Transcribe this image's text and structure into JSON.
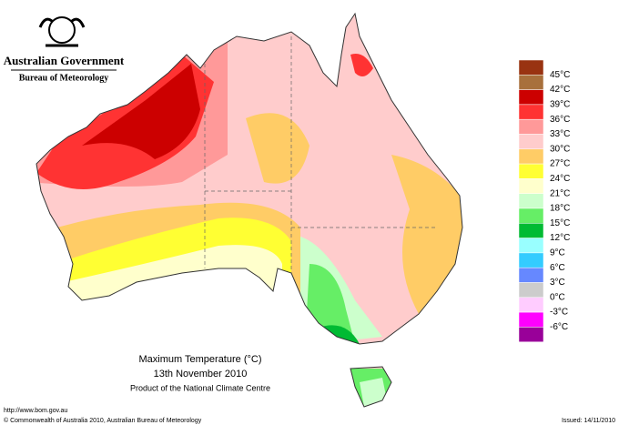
{
  "header": {
    "government": "Australian Government",
    "agency": "Bureau of Meteorology"
  },
  "map": {
    "title": "Maximum Temperature (°C)",
    "date": "13th November 2010",
    "product": "Product of the National Climate Centre"
  },
  "legend": {
    "colors": [
      "#993311",
      "#a8703c",
      "#cc0000",
      "#ff3333",
      "#ff9999",
      "#ffcccc",
      "#ffcc66",
      "#ffff33",
      "#ffffcc",
      "#ccffcc",
      "#66ee66",
      "#00bb33",
      "#99ffff",
      "#33ccff",
      "#6688ff",
      "#cccccc",
      "#ffccff",
      "#ff00ff",
      "#990099"
    ],
    "labels": [
      "45°C",
      "42°C",
      "39°C",
      "36°C",
      "33°C",
      "30°C",
      "27°C",
      "24°C",
      "21°C",
      "18°C",
      "15°C",
      "12°C",
      "9°C",
      "6°C",
      "3°C",
      "0°C",
      "-3°C",
      "-6°C"
    ]
  },
  "footer": {
    "url": "http://www.bom.gov.au",
    "copyright": "© Commonwealth of Australia 2010, Australian Bureau of Meteorology",
    "issued": "Issued: 14/11/2010"
  }
}
